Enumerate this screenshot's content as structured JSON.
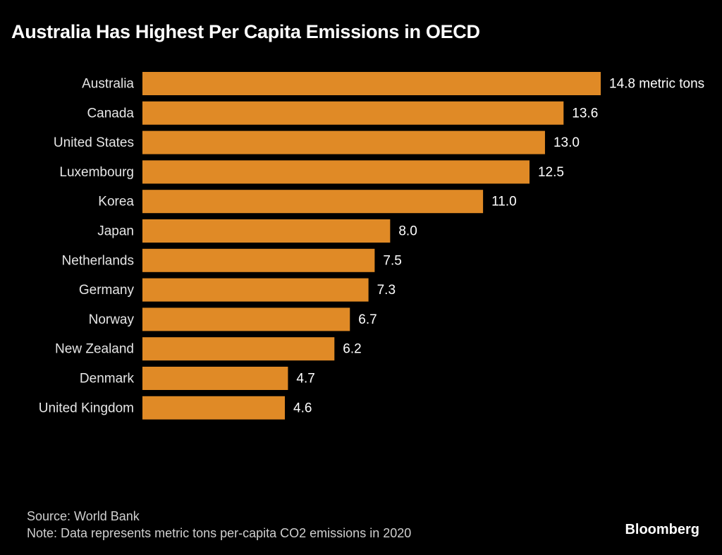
{
  "chart_data": {
    "type": "bar",
    "orientation": "horizontal",
    "title": "Australia Has Highest Per Capita Emissions in OECD",
    "categories": [
      "Australia",
      "Canada",
      "United States",
      "Luxembourg",
      "Korea",
      "Japan",
      "Netherlands",
      "Germany",
      "Norway",
      "New Zealand",
      "Denmark",
      "United Kingdom"
    ],
    "values": [
      14.8,
      13.6,
      13.0,
      12.5,
      11.0,
      8.0,
      7.5,
      7.3,
      6.7,
      6.2,
      4.7,
      4.6
    ],
    "value_labels": [
      "14.8 metric tons",
      "13.6",
      "13.0",
      "12.5",
      "11.0",
      "8.0",
      "7.5",
      "7.3",
      "6.7",
      "6.2",
      "4.7",
      "4.6"
    ],
    "unit": "metric tons",
    "xlabel": "",
    "ylabel": "",
    "xlim": [
      0,
      14.8
    ],
    "grid": false,
    "bar_color": "#E08A26"
  },
  "footer": {
    "source": "Source: World Bank",
    "note": "Note: Data represents metric tons per-capita CO2 emissions in 2020"
  },
  "brand": "Bloomberg"
}
